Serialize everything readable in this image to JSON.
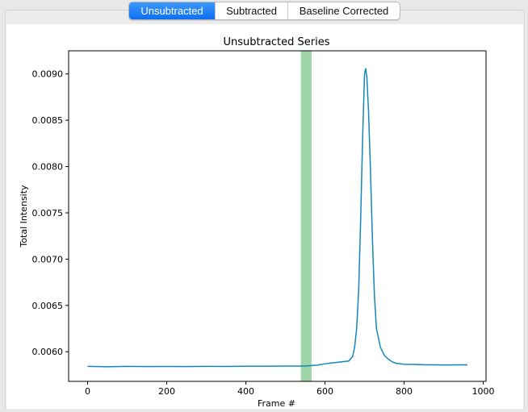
{
  "tabs": [
    {
      "label": "Unsubtracted",
      "active": true
    },
    {
      "label": "Subtracted",
      "active": false
    },
    {
      "label": "Baseline Corrected",
      "active": false
    }
  ],
  "colors": {
    "accent": "#1a7cf5",
    "series_line": "#1487b9",
    "highlight_band": "#9fd4a8"
  },
  "chart_data": {
    "type": "line",
    "title": "Unsubtracted Series",
    "xlabel": "Frame #",
    "ylabel": "Total Intensity",
    "xlim": [
      -48,
      1007
    ],
    "ylim": [
      0.00568,
      0.00925
    ],
    "xticks": [
      0,
      200,
      400,
      600,
      800,
      1000
    ],
    "xtick_labels": [
      "0",
      "200",
      "400",
      "600",
      "800",
      "1000"
    ],
    "yticks": [
      0.006,
      0.0065,
      0.007,
      0.0075,
      0.008,
      0.0085,
      0.009
    ],
    "ytick_labels": [
      "0.0060",
      "0.0065",
      "0.0070",
      "0.0075",
      "0.0080",
      "0.0085",
      "0.0090"
    ],
    "grid": false,
    "highlight_range": [
      539,
      566
    ],
    "series": [
      {
        "x": [
          0,
          50,
          100,
          150,
          200,
          250,
          300,
          350,
          400,
          450,
          500,
          550,
          580,
          600,
          620,
          640,
          660,
          670,
          675,
          680,
          685,
          690,
          695,
          700,
          703,
          706,
          710,
          715,
          720,
          725,
          730,
          740,
          750,
          760,
          770,
          780,
          800,
          850,
          900,
          960
        ],
        "y": [
          0.005842,
          0.005838,
          0.005842,
          0.00584,
          0.005841,
          0.00584,
          0.005842,
          0.005841,
          0.005843,
          0.005843,
          0.005845,
          0.005846,
          0.005855,
          0.00587,
          0.00588,
          0.00589,
          0.0059,
          0.00595,
          0.00605,
          0.00625,
          0.00665,
          0.0074,
          0.0083,
          0.009,
          0.00906,
          0.00895,
          0.0086,
          0.00795,
          0.0072,
          0.0066,
          0.00625,
          0.00605,
          0.00596,
          0.00592,
          0.00589,
          0.005875,
          0.005865,
          0.00586,
          0.005857,
          0.005858
        ]
      }
    ]
  }
}
